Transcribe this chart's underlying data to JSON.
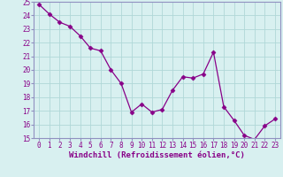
{
  "x": [
    0,
    1,
    2,
    3,
    4,
    5,
    6,
    7,
    8,
    9,
    10,
    11,
    12,
    13,
    14,
    15,
    16,
    17,
    18,
    19,
    20,
    21,
    22,
    23
  ],
  "y": [
    24.8,
    24.1,
    23.5,
    23.2,
    22.5,
    21.6,
    21.4,
    20.0,
    19.0,
    16.9,
    17.5,
    16.9,
    17.1,
    18.5,
    19.5,
    19.4,
    19.7,
    21.3,
    17.3,
    16.3,
    15.2,
    14.9,
    15.9,
    16.4
  ],
  "line_color": "#880088",
  "marker": "D",
  "marker_size": 2.5,
  "bg_color": "#d8f0f0",
  "grid_color": "#b0d8d8",
  "xlabel": "Windchill (Refroidissement éolien,°C)",
  "xlim": [
    -0.5,
    23.5
  ],
  "ylim": [
    15,
    25
  ],
  "yticks": [
    15,
    16,
    17,
    18,
    19,
    20,
    21,
    22,
    23,
    24,
    25
  ],
  "xticks": [
    0,
    1,
    2,
    3,
    4,
    5,
    6,
    7,
    8,
    9,
    10,
    11,
    12,
    13,
    14,
    15,
    16,
    17,
    18,
    19,
    20,
    21,
    22,
    23
  ],
  "xlabel_fontsize": 6.5,
  "tick_fontsize": 5.5,
  "spine_color": "#9090c0"
}
